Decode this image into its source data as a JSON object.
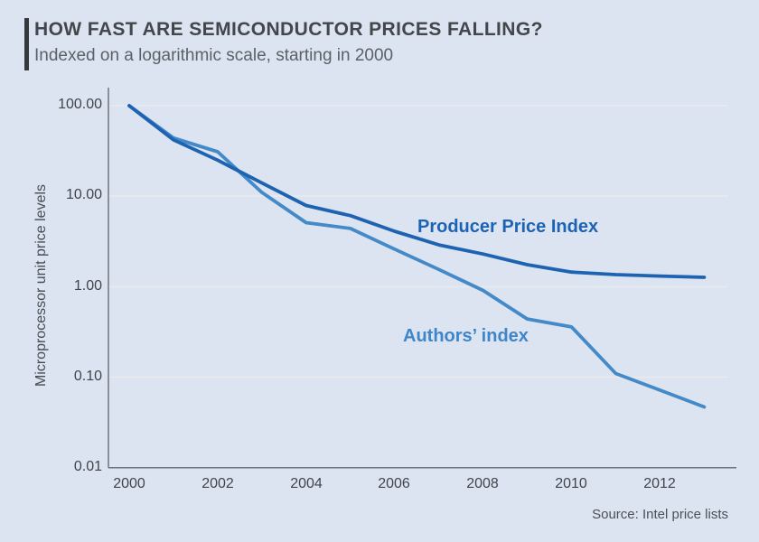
{
  "header": {
    "title": "HOW FAST ARE SEMICONDUCTOR PRICES FALLING?",
    "subtitle": "Indexed on a logarithmic scale, starting in 2000"
  },
  "colors": {
    "background": "#dce4f1",
    "accent_bar": "#35393d",
    "gridline": "#e8eaee",
    "axis": "#6e747a",
    "ppi_line": "#1e63b2",
    "authors_line": "#4489c8"
  },
  "chart_data": {
    "type": "line",
    "title": "HOW FAST ARE SEMICONDUCTOR PRICES FALLING?",
    "subtitle": "Indexed on a logarithmic scale, starting in 2000",
    "xlabel": "",
    "ylabel": "Microprocessor unit price levels",
    "source": "Source: Intel price lists",
    "y_scale": "log10",
    "ylim": [
      0.01,
      100
    ],
    "xlim": [
      2000,
      2013
    ],
    "grid": "horizontal decade gridlines on",
    "legend": "inline labels beside lines",
    "x": [
      2000,
      2001,
      2002,
      2003,
      2004,
      2005,
      2006,
      2007,
      2008,
      2009,
      2010,
      2011,
      2012,
      2013
    ],
    "series": [
      {
        "name": "Producer Price Index",
        "color": "#1e63b2",
        "values": [
          100,
          42,
          25,
          14,
          7.9,
          6.1,
          4.1,
          2.9,
          2.3,
          1.75,
          1.45,
          1.36,
          1.31,
          1.27
        ]
      },
      {
        "name": "Authors’ index",
        "color": "#4489c8",
        "values": [
          100,
          44,
          31,
          11,
          5.1,
          4.4,
          2.6,
          1.55,
          0.91,
          0.44,
          0.36,
          0.11,
          0.072,
          0.047
        ]
      }
    ],
    "y_ticks": [
      {
        "label": "100.00",
        "value": 100
      },
      {
        "label": "10.00",
        "value": 10
      },
      {
        "label": "1.00",
        "value": 1
      },
      {
        "label": "0.10",
        "value": 0.1
      },
      {
        "label": "0.01",
        "value": 0.01
      }
    ],
    "x_ticks": [
      {
        "label": "2000",
        "value": 2000
      },
      {
        "label": "2002",
        "value": 2002
      },
      {
        "label": "2004",
        "value": 2004
      },
      {
        "label": "2006",
        "value": 2006
      },
      {
        "label": "2008",
        "value": 2008
      },
      {
        "label": "2010",
        "value": 2010
      },
      {
        "label": "2012",
        "value": 2012
      }
    ]
  }
}
